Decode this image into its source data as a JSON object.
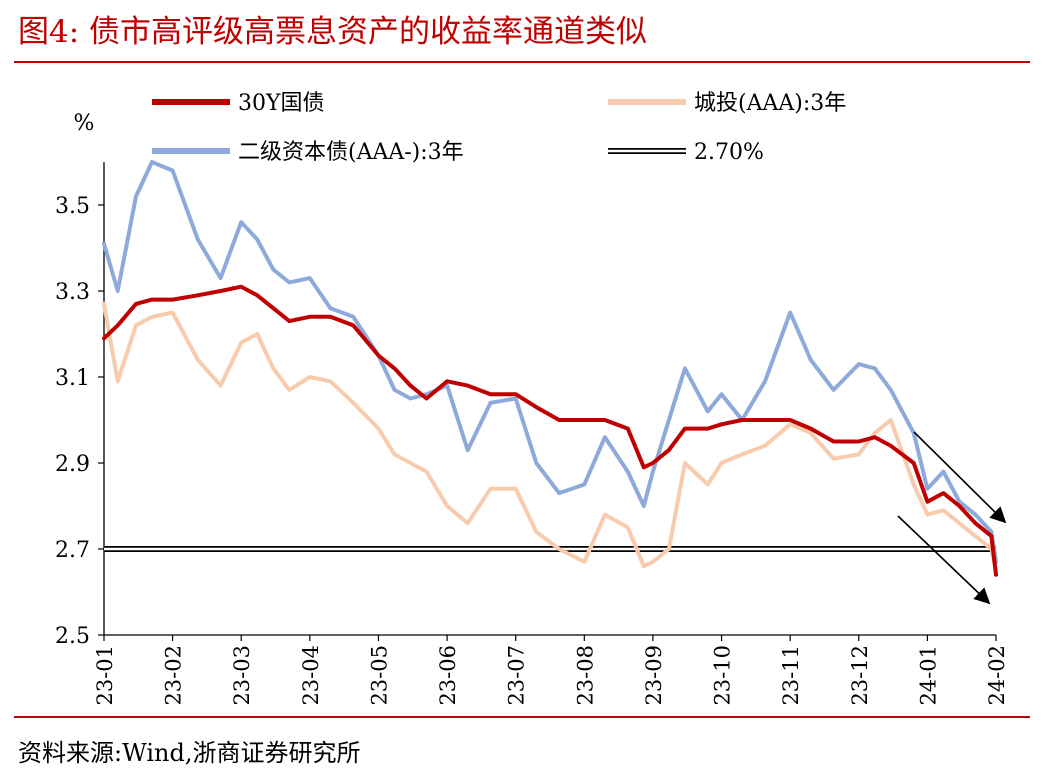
{
  "header": {
    "title": "图4:  债市高评级高票息资产的收益率通道类似"
  },
  "footer": {
    "source": "资料来源:Wind,浙商证券研究所"
  },
  "chart_data": {
    "type": "line",
    "ylabel": "%",
    "ylim": [
      2.5,
      3.6
    ],
    "yticks": [
      "3.5",
      "3.3",
      "3.1",
      "2.9",
      "2.7",
      "2.5"
    ],
    "xtick_labels": [
      "23-01",
      "23-02",
      "23-03",
      "23-04",
      "23-05",
      "23-06",
      "23-07",
      "23-08",
      "23-09",
      "23-10",
      "23-11",
      "23-12",
      "24-01",
      "24-02"
    ],
    "legend_placement": "top",
    "grid": false,
    "reference_line": {
      "name": "2.70%",
      "value": 2.7
    },
    "series": [
      {
        "name": "30Y国债",
        "color": "#c00000",
        "x": [
          "2023-01-01",
          "2023-01-07",
          "2023-01-15",
          "2023-01-22",
          "2023-02-01",
          "2023-02-12",
          "2023-02-22",
          "2023-03-01",
          "2023-03-08",
          "2023-03-15",
          "2023-03-22",
          "2023-04-01",
          "2023-04-10",
          "2023-04-20",
          "2023-05-01",
          "2023-05-08",
          "2023-05-15",
          "2023-05-22",
          "2023-06-01",
          "2023-06-10",
          "2023-06-20",
          "2023-07-01",
          "2023-07-10",
          "2023-07-20",
          "2023-08-01",
          "2023-08-10",
          "2023-08-20",
          "2023-08-27",
          "2023-09-01",
          "2023-09-08",
          "2023-09-15",
          "2023-09-25",
          "2023-10-01",
          "2023-10-10",
          "2023-10-20",
          "2023-11-01",
          "2023-11-10",
          "2023-11-20",
          "2023-12-01",
          "2023-12-08",
          "2023-12-15",
          "2023-12-25",
          "2024-01-01",
          "2024-01-08",
          "2024-01-15",
          "2024-01-22",
          "2024-01-29",
          "2024-02-01"
        ],
        "values": [
          3.19,
          3.22,
          3.27,
          3.28,
          3.28,
          3.29,
          3.3,
          3.31,
          3.29,
          3.26,
          3.23,
          3.24,
          3.24,
          3.22,
          3.15,
          3.12,
          3.08,
          3.05,
          3.09,
          3.08,
          3.06,
          3.06,
          3.03,
          3.0,
          3.0,
          3.0,
          2.98,
          2.89,
          2.9,
          2.93,
          2.98,
          2.98,
          2.99,
          3.0,
          3.0,
          3.0,
          2.98,
          2.95,
          2.95,
          2.96,
          2.94,
          2.9,
          2.81,
          2.83,
          2.8,
          2.76,
          2.73,
          2.64
        ]
      },
      {
        "name": "城投(AAA):3年",
        "color": "#f8cbad",
        "x": [
          "2023-01-01",
          "2023-01-07",
          "2023-01-15",
          "2023-01-22",
          "2023-02-01",
          "2023-02-12",
          "2023-02-22",
          "2023-03-01",
          "2023-03-08",
          "2023-03-15",
          "2023-03-22",
          "2023-04-01",
          "2023-04-10",
          "2023-04-20",
          "2023-05-01",
          "2023-05-08",
          "2023-05-15",
          "2023-05-22",
          "2023-06-01",
          "2023-06-10",
          "2023-06-20",
          "2023-07-01",
          "2023-07-10",
          "2023-07-20",
          "2023-08-01",
          "2023-08-10",
          "2023-08-20",
          "2023-08-27",
          "2023-09-01",
          "2023-09-08",
          "2023-09-15",
          "2023-09-25",
          "2023-10-01",
          "2023-10-10",
          "2023-10-20",
          "2023-11-01",
          "2023-11-10",
          "2023-11-20",
          "2023-12-01",
          "2023-12-08",
          "2023-12-15",
          "2023-12-25",
          "2024-01-01",
          "2024-01-08",
          "2024-01-15",
          "2024-01-22",
          "2024-01-29",
          "2024-02-01"
        ],
        "values": [
          3.27,
          3.09,
          3.22,
          3.24,
          3.25,
          3.14,
          3.08,
          3.18,
          3.2,
          3.12,
          3.07,
          3.1,
          3.09,
          3.04,
          2.98,
          2.92,
          2.9,
          2.88,
          2.8,
          2.76,
          2.84,
          2.84,
          2.74,
          2.7,
          2.67,
          2.78,
          2.75,
          2.66,
          2.67,
          2.7,
          2.9,
          2.85,
          2.9,
          2.92,
          2.94,
          2.99,
          2.97,
          2.91,
          2.92,
          2.97,
          3.0,
          2.85,
          2.78,
          2.79,
          2.76,
          2.73,
          2.7,
          2.65
        ]
      },
      {
        "name": "二级资本债(AAA-):3年",
        "color": "#8eaadb",
        "x": [
          "2023-01-01",
          "2023-01-07",
          "2023-01-15",
          "2023-01-22",
          "2023-02-01",
          "2023-02-12",
          "2023-02-22",
          "2023-03-01",
          "2023-03-08",
          "2023-03-15",
          "2023-03-22",
          "2023-04-01",
          "2023-04-10",
          "2023-04-20",
          "2023-05-01",
          "2023-05-08",
          "2023-05-15",
          "2023-05-22",
          "2023-06-01",
          "2023-06-10",
          "2023-06-20",
          "2023-07-01",
          "2023-07-10",
          "2023-07-20",
          "2023-08-01",
          "2023-08-10",
          "2023-08-20",
          "2023-08-27",
          "2023-09-01",
          "2023-09-08",
          "2023-09-15",
          "2023-09-25",
          "2023-10-01",
          "2023-10-10",
          "2023-10-20",
          "2023-11-01",
          "2023-11-10",
          "2023-11-20",
          "2023-12-01",
          "2023-12-08",
          "2023-12-15",
          "2023-12-25",
          "2024-01-01",
          "2024-01-08",
          "2024-01-15",
          "2024-01-22",
          "2024-01-29",
          "2024-02-01"
        ],
        "values": [
          3.41,
          3.3,
          3.52,
          3.6,
          3.58,
          3.42,
          3.33,
          3.46,
          3.42,
          3.35,
          3.32,
          3.33,
          3.26,
          3.24,
          3.15,
          3.07,
          3.05,
          3.06,
          3.08,
          2.93,
          3.04,
          3.05,
          2.9,
          2.83,
          2.85,
          2.96,
          2.88,
          2.8,
          2.88,
          3.0,
          3.12,
          3.02,
          3.06,
          3.0,
          3.09,
          3.25,
          3.14,
          3.07,
          3.13,
          3.12,
          3.07,
          2.97,
          2.84,
          2.88,
          2.81,
          2.78,
          2.74,
          2.67
        ]
      }
    ]
  }
}
